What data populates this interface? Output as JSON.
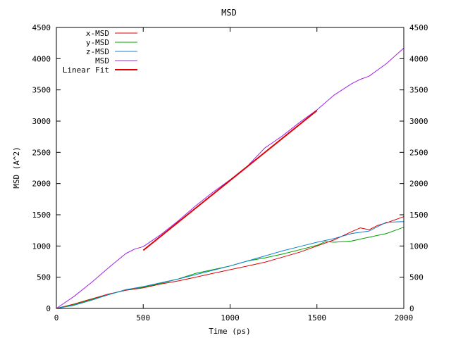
{
  "chart_data": {
    "type": "line",
    "title": "MSD",
    "xlabel": "Time (ps)",
    "ylabel": "MSD (A^2)",
    "xlim": [
      0,
      2000
    ],
    "ylim": [
      0,
      4500
    ],
    "x_ticks": [
      0,
      500,
      1000,
      1500,
      2000
    ],
    "y_ticks": [
      0,
      500,
      1000,
      1500,
      2000,
      2500,
      3000,
      3500,
      4000,
      4500
    ],
    "grid": false,
    "legend_position": "top-left",
    "series": [
      {
        "name": "x-MSD",
        "color": "#e00000",
        "x": [
          0,
          100,
          200,
          300,
          400,
          500,
          600,
          700,
          800,
          900,
          1000,
          1100,
          1200,
          1300,
          1400,
          1500,
          1600,
          1700,
          1750,
          1800,
          1850,
          1900,
          2000
        ],
        "values": [
          0,
          70,
          150,
          230,
          290,
          330,
          390,
          440,
          500,
          560,
          620,
          680,
          740,
          820,
          900,
          1000,
          1100,
          1230,
          1290,
          1260,
          1330,
          1370,
          1470
        ]
      },
      {
        "name": "y-MSD",
        "color": "#00a000",
        "x": [
          0,
          100,
          200,
          300,
          400,
          500,
          600,
          700,
          800,
          900,
          1000,
          1100,
          1200,
          1300,
          1400,
          1500,
          1550,
          1600,
          1700,
          1800,
          1900,
          1950,
          2000
        ],
        "values": [
          0,
          60,
          140,
          220,
          300,
          340,
          400,
          470,
          560,
          620,
          680,
          760,
          810,
          870,
          940,
          1010,
          1070,
          1060,
          1080,
          1140,
          1200,
          1250,
          1300
        ]
      },
      {
        "name": "z-MSD",
        "color": "#1080d0",
        "x": [
          0,
          100,
          200,
          300,
          400,
          500,
          600,
          700,
          800,
          900,
          1000,
          1100,
          1200,
          1300,
          1400,
          1500,
          1600,
          1700,
          1800,
          1900,
          2000
        ],
        "values": [
          0,
          50,
          130,
          220,
          300,
          350,
          410,
          470,
          540,
          610,
          680,
          760,
          840,
          920,
          990,
          1060,
          1120,
          1200,
          1240,
          1380,
          1390
        ]
      },
      {
        "name": "MSD",
        "color": "#a020f0",
        "x": [
          0,
          100,
          200,
          300,
          400,
          450,
          500,
          600,
          700,
          800,
          900,
          1000,
          1100,
          1200,
          1300,
          1400,
          1500,
          1600,
          1700,
          1750,
          1800,
          1900,
          2000
        ],
        "values": [
          0,
          190,
          410,
          650,
          880,
          950,
          990,
          1180,
          1400,
          1640,
          1860,
          2060,
          2280,
          2570,
          2760,
          2980,
          3180,
          3420,
          3600,
          3670,
          3720,
          3920,
          4170
        ]
      },
      {
        "name": "Linear Fit",
        "color": "#e00000",
        "bold": true,
        "x": [
          500,
          1500
        ],
        "values": [
          930,
          3170
        ]
      }
    ]
  }
}
